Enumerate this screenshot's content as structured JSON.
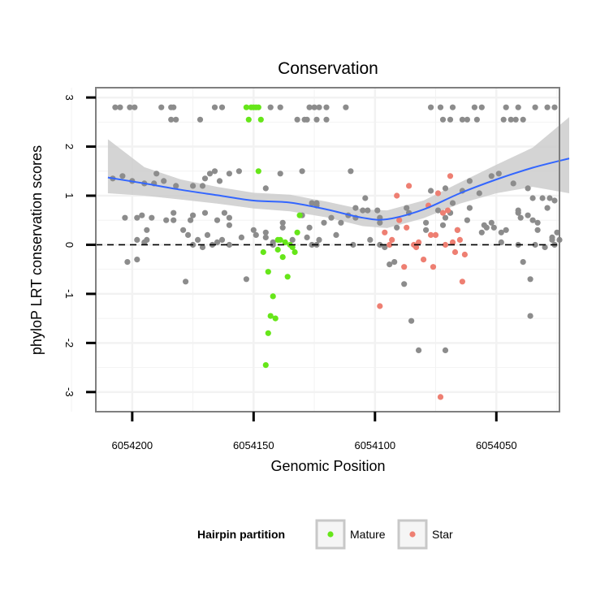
{
  "chart_data": {
    "type": "scatter",
    "title": "Conservation",
    "xlabel": "Genomic Position",
    "ylabel": "phyloP LRT conservation scores",
    "x_reversed": true,
    "xlim": [
      6054215,
      6054024
    ],
    "ylim": [
      -3.4,
      3.2
    ],
    "x_ticks": [
      6054200,
      6054150,
      6054100,
      6054050
    ],
    "y_ticks": [
      -3,
      -2,
      -1,
      0,
      1,
      2,
      3
    ],
    "x_tick_labels": [
      "6054200",
      "6054150",
      "6054100",
      "6054050"
    ],
    "y_tick_labels": [
      "-3",
      "-2",
      "-1",
      "0",
      "1",
      "2",
      "3"
    ],
    "reference_line": {
      "y": 0,
      "style": "dashed"
    },
    "colors": {
      "other": "#8C8C8C",
      "Mature": "#66E619",
      "Star": "#EE7F72",
      "smooth": "#3366FF",
      "band": "#CCCCCC",
      "grid": "#F2F2F2",
      "frame": "#7F7F7F"
    },
    "legend": {
      "title": "Hairpin partition",
      "position": "bottom",
      "entries": [
        {
          "label": "Mature",
          "color": "#66E619"
        },
        {
          "label": "Star",
          "color": "#EE7F72"
        }
      ]
    },
    "smooth": {
      "x": [
        6054210,
        6054195,
        6054180,
        6054165,
        6054150,
        6054135,
        6054120,
        6054105,
        6054095,
        6054080,
        6054065,
        6054050,
        6054035,
        6054020
      ],
      "y": [
        1.37,
        1.25,
        1.12,
        1.01,
        0.9,
        0.86,
        0.72,
        0.55,
        0.52,
        0.72,
        1.05,
        1.33,
        1.57,
        1.76
      ],
      "lower": [
        1.05,
        1.0,
        0.92,
        0.84,
        0.74,
        0.68,
        0.56,
        0.38,
        0.34,
        0.54,
        0.84,
        1.05,
        1.18,
        1.05
      ],
      "upper": [
        2.15,
        1.58,
        1.33,
        1.18,
        1.06,
        1.02,
        0.88,
        0.72,
        0.7,
        0.9,
        1.27,
        1.63,
        1.98,
        2.6
      ]
    },
    "series": [
      {
        "name": "other",
        "x": [
          6054207,
          6054205,
          6054201,
          6054199,
          6054188,
          6054184,
          6054183,
          6054166,
          6054163,
          6054143,
          6054139,
          6054127,
          6054125,
          6054123,
          6054120,
          6054112,
          6054077,
          6054073,
          6054068,
          6054059,
          6054056,
          6054046,
          6054041,
          6054034,
          6054029,
          6054026,
          6054184,
          6054182,
          6054172,
          6054132,
          6054129,
          6054128,
          6054124,
          6054120,
          6054072,
          6054069,
          6054064,
          6054062,
          6054058,
          6054047,
          6054044,
          6054042,
          6054039,
          6054204,
          6054200,
          6054195,
          6054191,
          6054190,
          6054187,
          6054182,
          6054175,
          6054171,
          6054170,
          6054168,
          6054166,
          6054164,
          6054160,
          6054156,
          6054145,
          6054130,
          6054110,
          6054104,
          6054077,
          6054071,
          6054061,
          6054052,
          6054049,
          6054037,
          6054035,
          6054031,
          6054028,
          6054026,
          6054208,
          6054203,
          6054198,
          6054196,
          6054192,
          6054179,
          6054177,
          6054175,
          6054171,
          6054165,
          6054160,
          6054150,
          6054124,
          6054118,
          6054108,
          6054098,
          6054079,
          6054074,
          6054062,
          6054054,
          6054052,
          6054048,
          6054040,
          6054033,
          6054030,
          6054027,
          6054025,
          6054202,
          6054198,
          6054194,
          6054178,
          6054176,
          6054173,
          6054162,
          6054160,
          6054153,
          6054149,
          6054145,
          6054142,
          6054138,
          6054130,
          6054114,
          6054105,
          6054103,
          6054102,
          6054098,
          6054096,
          6054094,
          6054092,
          6054088,
          6054085,
          6054082,
          6054071,
          6054066,
          6054056,
          6054048,
          6054041,
          6054039,
          6054036,
          6054036,
          6054034,
          6054198,
          6054194,
          6054183,
          6054169,
          6054160,
          6054145,
          6054142,
          6054139,
          6054138,
          6054134,
          6054128,
          6054127,
          6054126,
          6054124,
          6054121,
          6054111,
          6054109,
          6054108,
          6054099,
          6054098,
          6054091,
          6054086,
          6054071,
          6054069,
          6054061,
          6054055,
          6054051,
          6054041,
          6054037,
          6054033,
          6054029,
          6054027,
          6054026,
          6054024,
          6054195,
          6054186,
          6054183,
          6054175,
          6054170,
          6054167,
          6054165,
          6054163,
          6054155,
          6054126,
          6054124,
          6054123,
          6054116,
          6054087,
          6054079,
          6054072,
          6054069,
          6054068,
          6054064,
          6054057,
          6054046,
          6054043,
          6054041,
          6054035
        ],
        "y": [
          2.8,
          2.8,
          2.8,
          2.8,
          2.8,
          2.8,
          2.8,
          2.8,
          2.8,
          2.8,
          2.8,
          2.8,
          2.8,
          2.8,
          2.8,
          2.8,
          2.8,
          2.8,
          2.8,
          2.8,
          2.8,
          2.8,
          2.8,
          2.8,
          2.8,
          2.8,
          2.55,
          2.55,
          2.55,
          2.55,
          2.55,
          2.55,
          2.55,
          2.55,
          2.55,
          2.55,
          2.55,
          2.55,
          2.55,
          2.55,
          2.55,
          2.55,
          2.55,
          1.4,
          1.3,
          1.25,
          1.25,
          1.45,
          1.3,
          1.2,
          1.2,
          1.2,
          1.35,
          1.45,
          1.5,
          1.3,
          1.45,
          1.5,
          1.15,
          1.5,
          1.5,
          0.95,
          1.1,
          1.15,
          1.3,
          1.4,
          1.45,
          1.15,
          0.95,
          0.95,
          0.95,
          0.9,
          1.35,
          0.55,
          0.55,
          0.6,
          0.55,
          0.3,
          0.2,
          0.0,
          -0.05,
          0.5,
          0.55,
          0.3,
          0.8,
          0.55,
          0.75,
          0.55,
          0.3,
          0.7,
          0.5,
          0.35,
          0.45,
          0.25,
          0.55,
          0.3,
          -0.05,
          0.15,
          0.25,
          -0.35,
          -0.3,
          0.1,
          -0.75,
          0.5,
          0.1,
          0.65,
          0.4,
          -0.7,
          0.2,
          0.15,
          0.05,
          0.35,
          0.6,
          0.45,
          0.7,
          0.7,
          0.1,
          0.0,
          -0.05,
          -0.4,
          -0.35,
          -0.8,
          -1.55,
          -2.15,
          -2.15,
          0.3,
          0.25,
          0.05,
          0.0,
          -0.35,
          -1.45,
          -0.7,
          0.0,
          0.1,
          0.3,
          0.5,
          0.2,
          0.0,
          0.25,
          0.0,
          1.45,
          0.45,
          0.1,
          0.15,
          0.35,
          0.0,
          0.0,
          0.45,
          0.6,
          0.0,
          0.55,
          0.7,
          0.45,
          0.35,
          0.65,
          0.55,
          0.65,
          0.75,
          0.4,
          0.35,
          0.65,
          0.6,
          0.45,
          0.75,
          0.1,
          0.0,
          0.1,
          0.05,
          0.5,
          0.65,
          0.6,
          0.65,
          0.0,
          0.05,
          0.1,
          0.15,
          0.85,
          0.85,
          0.1,
          0.2,
          0.75,
          0.45,
          0.4,
          0.65,
          0.85,
          1.1,
          1.05,
          0.3,
          1.25,
          0.7,
          0.5
        ]
      },
      {
        "name": "Mature",
        "x": [
          6054153,
          6054151,
          6054150,
          6054149,
          6054148,
          6054152,
          6054147,
          6054148,
          6054146,
          6054144,
          6054142,
          6054141,
          6054140,
          6054138,
          6054137,
          6054136,
          6054135,
          6054134,
          6054133,
          6054132,
          6054131,
          6054139,
          6054140,
          6054143,
          6054144,
          6054145
        ],
        "y": [
          2.8,
          2.8,
          2.8,
          2.8,
          2.8,
          2.55,
          2.55,
          1.5,
          -0.15,
          -0.55,
          -1.05,
          -1.5,
          -0.1,
          -0.25,
          0.05,
          -0.65,
          0.0,
          -0.05,
          -0.15,
          0.25,
          0.6,
          0.1,
          0.1,
          -1.45,
          -1.8,
          -2.45
        ]
      },
      {
        "name": "Star",
        "x": [
          6054098,
          6054096,
          6054094,
          6054093,
          6054091,
          6054090,
          6054088,
          6054087,
          6054086,
          6054084,
          6054083,
          6054082,
          6054080,
          6054078,
          6054077,
          6054076,
          6054075,
          6054074,
          6054073,
          6054072,
          6054071,
          6054070,
          6054069,
          6054068,
          6054067,
          6054066,
          6054065,
          6054064,
          6054063
        ],
        "y": [
          -1.25,
          0.25,
          0.0,
          0.1,
          1.0,
          0.5,
          -0.45,
          0.35,
          1.2,
          0.0,
          -0.05,
          0.05,
          -0.3,
          0.8,
          0.2,
          -0.45,
          0.2,
          1.05,
          -3.1,
          0.65,
          0.0,
          0.7,
          1.4,
          0.05,
          -0.15,
          0.3,
          0.1,
          -0.75,
          -0.2
        ]
      }
    ]
  }
}
